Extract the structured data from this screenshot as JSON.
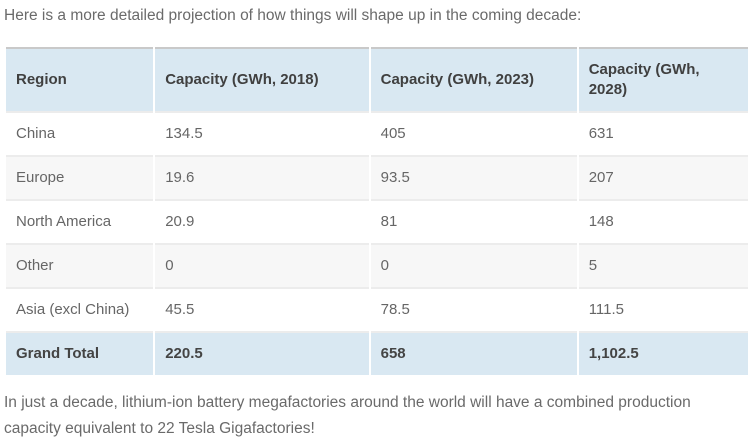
{
  "page": {
    "intro_text": "Here is a more detailed projection of how things will shape up in the coming decade:",
    "outro_text": "In just a decade, lithium-ion battery megafactories around the world will have a combined production capacity equivalent to 22 Tesla Gigafactories!"
  },
  "table": {
    "columns": [
      "Region",
      "Capacity (GWh, 2018)",
      "Capacity (GWh, 2023)",
      "Capacity (GWh, 2028)"
    ],
    "rows": [
      {
        "region": "China",
        "y2018": "134.5",
        "y2023": "405",
        "y2028": "631"
      },
      {
        "region": "Europe",
        "y2018": "19.6",
        "y2023": "93.5",
        "y2028": "207"
      },
      {
        "region": "North America",
        "y2018": "20.9",
        "y2023": "81",
        "y2028": "148"
      },
      {
        "region": "Other",
        "y2018": "0",
        "y2023": "0",
        "y2028": "5"
      },
      {
        "region": "Asia (excl China)",
        "y2018": "45.5",
        "y2023": "78.5",
        "y2028": "111.5"
      }
    ],
    "footer": {
      "region": "Grand Total",
      "y2018": "220.5",
      "y2023": "658",
      "y2028": "1,102.5"
    }
  },
  "colors": {
    "header_bg": "#d9e8f2",
    "stripe_bg": "#f7f7f7",
    "table_top_border": "#c9c9c9",
    "row_border": "#ececec",
    "body_text": "#6a6a6a",
    "header_text": "#404040"
  }
}
